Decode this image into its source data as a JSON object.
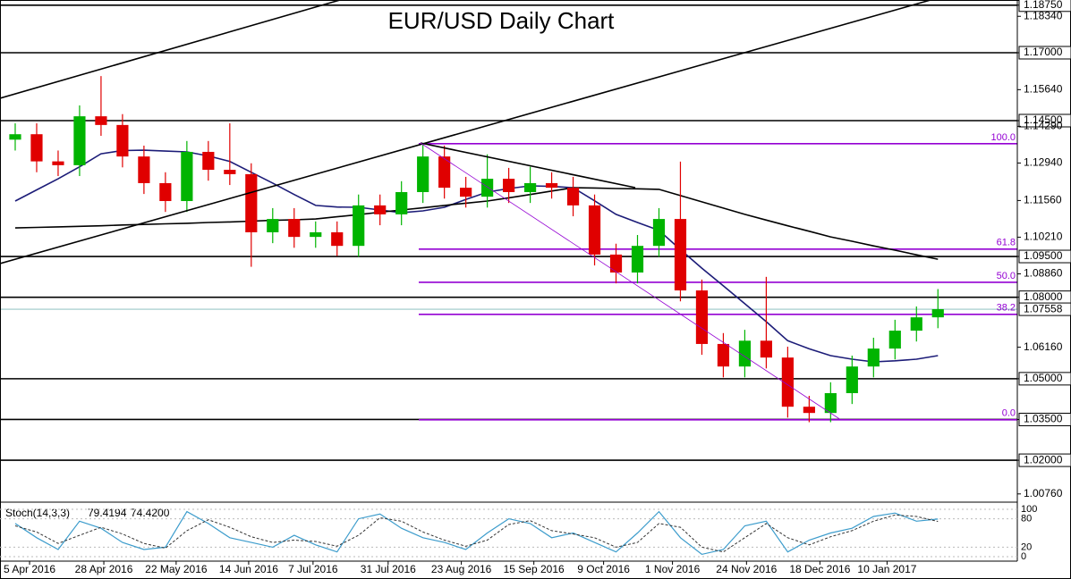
{
  "chart_data": {
    "type": "candlestick",
    "title": "EUR/USD Daily Chart",
    "xlim": [
      0,
      47.2
    ],
    "xticks": [
      {
        "value": 1.17,
        "label": "5 Apr 2016"
      },
      {
        "value": 4.63,
        "label": "28 Apr 2016"
      },
      {
        "value": 8.0,
        "label": "22 May 2016"
      },
      {
        "value": 11.38,
        "label": "14 Jun 2016"
      },
      {
        "value": 14.38,
        "label": "7 Jul 2016"
      },
      {
        "value": 17.88,
        "label": "31 Jul 2016"
      },
      {
        "value": 21.29,
        "label": "23 Aug 2016"
      },
      {
        "value": 24.67,
        "label": "15 Sep 2016"
      },
      {
        "value": 27.92,
        "label": "9 Oct 2016"
      },
      {
        "value": 31.13,
        "label": "1 Nov 2016"
      },
      {
        "value": 34.58,
        "label": "24 Nov 2016"
      },
      {
        "value": 38.0,
        "label": "18 Dec 2016"
      },
      {
        "value": 41.13,
        "label": "10 Jan 2017"
      }
    ],
    "ylim": [
      1.0049,
      1.1894
    ],
    "yticks": [
      {
        "value": 1.1875,
        "label": "1.18750"
      },
      {
        "value": 1.1834,
        "label": "1.18340"
      },
      {
        "value": 1.17,
        "label": "1.17000"
      },
      {
        "value": 1.1564,
        "label": "1.15640"
      },
      {
        "value": 1.145,
        "label": "1.14500"
      },
      {
        "value": 1.1429,
        "label": "1.14290"
      },
      {
        "value": 1.1294,
        "label": "1.12940"
      },
      {
        "value": 1.1156,
        "label": "1.11560"
      },
      {
        "value": 1.1021,
        "label": "1.10210"
      },
      {
        "value": 1.095,
        "label": "1.09500"
      },
      {
        "value": 1.0886,
        "label": "1.08860"
      },
      {
        "value": 1.08,
        "label": "1.08000"
      },
      {
        "value": 1.0616,
        "label": "1.06160"
      },
      {
        "value": 1.05,
        "label": "1.05000"
      },
      {
        "value": 1.035,
        "label": "1.03500"
      },
      {
        "value": 1.02,
        "label": "1.02000"
      },
      {
        "value": 1.0076,
        "label": "1.00760"
      }
    ],
    "levels": [
      1.1875,
      1.17,
      1.145,
      1.095,
      1.08,
      1.05,
      1.035,
      1.02
    ],
    "last_price": {
      "value": 1.07558,
      "label": "1.07558"
    },
    "fib_levels": [
      {
        "label": "100.0",
        "price": 1.1365
      },
      {
        "label": "61.8",
        "price": 1.0977
      },
      {
        "label": "50.0",
        "price": 1.0855
      },
      {
        "label": "38.2",
        "price": 1.0737
      },
      {
        "label": "0.0",
        "price": 1.0349
      }
    ],
    "up_color": "#00b400",
    "down_color": "#e00000",
    "open": [
      1.138,
      1.14,
      1.13,
      1.1286,
      1.1466,
      1.1434,
      1.1318,
      1.122,
      1.1154,
      1.1335,
      1.1269,
      1.1253,
      1.1039,
      1.1088,
      1.1022,
      1.1039,
      1.0989,
      1.1138,
      1.1105,
      1.1187,
      1.1318,
      1.1203,
      1.117,
      1.1236,
      1.1187,
      1.122,
      1.1203,
      1.1138,
      1.0957,
      1.0891,
      1.0989,
      1.1088,
      1.0825,
      1.0628,
      1.0545,
      1.064,
      1.0578,
      1.0397,
      1.0374,
      1.0447,
      1.0545,
      1.0611,
      1.0677,
      1.0726
    ],
    "high": [
      1.144,
      1.144,
      1.134,
      1.1506,
      1.1614,
      1.1474,
      1.1358,
      1.126,
      1.1375,
      1.1375,
      1.144,
      1.1293,
      1.1128,
      1.1128,
      1.1079,
      1.1079,
      1.1178,
      1.1178,
      1.1227,
      1.1366,
      1.1358,
      1.1243,
      1.1326,
      1.1276,
      1.128,
      1.126,
      1.1243,
      1.1178,
      1.0997,
      1.1029,
      1.1128,
      1.1299,
      1.0865,
      1.0668,
      1.068,
      1.0875,
      1.0618,
      1.0437,
      1.0487,
      1.0585,
      1.0651,
      1.0717,
      1.0766,
      1.083
    ],
    "low": [
      1.134,
      1.126,
      1.1246,
      1.1246,
      1.1394,
      1.1278,
      1.118,
      1.1114,
      1.1114,
      1.1229,
      1.1213,
      1.0912,
      1.0999,
      1.0982,
      1.0982,
      1.0952,
      1.0949,
      1.1065,
      1.1065,
      1.1147,
      1.1163,
      1.113,
      1.113,
      1.1147,
      1.1147,
      1.1163,
      1.1098,
      1.0917,
      1.0851,
      1.0851,
      1.0949,
      1.0785,
      1.0588,
      1.0505,
      1.0505,
      1.0538,
      1.0357,
      1.034,
      1.034,
      1.0407,
      1.0505,
      1.0571,
      1.0637,
      1.0686
    ],
    "close": [
      1.14,
      1.13,
      1.1286,
      1.1466,
      1.1434,
      1.1318,
      1.122,
      1.1154,
      1.1335,
      1.1269,
      1.1253,
      1.1039,
      1.1088,
      1.1022,
      1.1039,
      1.0989,
      1.1138,
      1.1105,
      1.1187,
      1.1318,
      1.1203,
      1.117,
      1.1236,
      1.1187,
      1.122,
      1.1203,
      1.1138,
      1.0957,
      1.0891,
      1.0989,
      1.1088,
      1.0825,
      1.0628,
      1.0545,
      1.064,
      1.0578,
      1.0397,
      1.0374,
      1.0447,
      1.0545,
      1.0611,
      1.0677,
      1.0726,
      1.0756
    ],
    "moving_averages": [
      {
        "color": "#1c1c78",
        "values": [
          1.1154,
          1.1195,
          1.1236,
          1.128,
          1.1328,
          1.134,
          1.1341,
          1.1338,
          1.1335,
          1.132,
          1.13,
          1.126,
          1.122,
          1.1178,
          1.1138,
          1.1132,
          1.1131,
          1.1121,
          1.1111,
          1.1118,
          1.1131,
          1.116,
          1.1187,
          1.12,
          1.121,
          1.1208,
          1.1203,
          1.1155,
          1.1105,
          1.1075,
          1.1046,
          1.0975,
          1.0907,
          1.0842,
          1.0776,
          1.071,
          1.064,
          1.061,
          1.0585,
          1.0572,
          1.0562,
          1.0566,
          1.0572,
          1.0585
        ]
      },
      {
        "color": "#000000",
        "values": [
          1.1055,
          1.1057,
          1.1059,
          1.1061,
          1.1063,
          1.1066,
          1.1068,
          1.107,
          1.1072,
          1.1075,
          1.1077,
          1.108,
          1.1083,
          1.1085,
          1.1088,
          1.1096,
          1.1104,
          1.1113,
          1.1121,
          1.1129,
          1.1138,
          1.1146,
          1.1154,
          1.1166,
          1.1178,
          1.1191,
          1.1203,
          1.1202,
          1.12,
          1.1199,
          1.1197,
          1.1174,
          1.1151,
          1.1128,
          1.1105,
          1.1084,
          1.1063,
          1.1043,
          1.1022,
          1.1006,
          1.0989,
          1.0973,
          1.0956,
          1.094
        ]
      }
    ],
    "stoch": {
      "name": "Stoch(14,3,3)",
      "last_labels": [
        "79.4194",
        "74.4200"
      ],
      "ylim": [
        0,
        100
      ],
      "yticks": [
        0,
        20,
        80,
        100
      ],
      "k": [
        70,
        40,
        15,
        75,
        60,
        30,
        15,
        20,
        95,
        70,
        40,
        30,
        20,
        45,
        25,
        10,
        80,
        90,
        60,
        40,
        30,
        15,
        50,
        80,
        70,
        40,
        50,
        30,
        10,
        50,
        95,
        40,
        5,
        15,
        65,
        75,
        10,
        35,
        50,
        60,
        85,
        92,
        75,
        79.4194
      ],
      "d": [
        65,
        52,
        28,
        45,
        62,
        48,
        28,
        18,
        55,
        78,
        62,
        42,
        30,
        35,
        32,
        22,
        45,
        82,
        75,
        52,
        35,
        22,
        35,
        68,
        76,
        55,
        48,
        40,
        20,
        30,
        70,
        62,
        20,
        10,
        40,
        70,
        40,
        25,
        42,
        55,
        75,
        88,
        85,
        74.42
      ],
      "k_color": "#3c9ccc",
      "d_color": "#333333"
    }
  }
}
